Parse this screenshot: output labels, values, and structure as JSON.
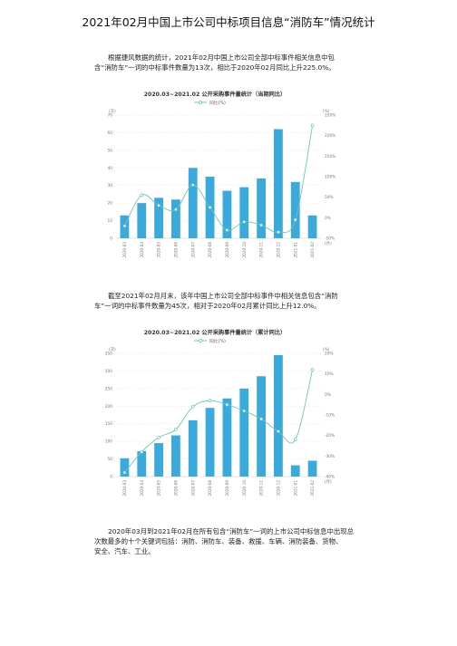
{
  "document": {
    "title": "2021年02月中国上市公司中标项目信息“消防车”情况统计",
    "para1": "根据捷风数据的统计，2021年02月中国上市公司全部中标事件相关信息中包\n含“消防车”一词的中标事件数量为13次，相比于2020年02月同比上升225.0%。",
    "para2": "截至2021年02月月末，该年中国上市公司全部中标事件中相关信息包含“消防\n车”一词的中标事件数量为45次，相对于2020年02月累计同比上升12.0%。",
    "para3": "2020年03月到2021年02月在所有包含“消防车”一词的上市公司中标信息中出现总\n次数最多的十个关键词包括：消防、消防车、装备、救援、车辆、消防装备、货物、\n安全、汽车、工业。"
  },
  "chart_data": [
    {
      "type": "bar",
      "title": "2020.03~2021.02 公开采购事件量统计（当期同比）",
      "legend": "同比(%)",
      "ylabel_left": "(次)",
      "ylabel_right": "(%)",
      "xlabel_right": "(月)",
      "bar_color": "#3aa9dc",
      "line_color": "#6cc7b6",
      "categories": [
        "2020-03",
        "2020-04",
        "2020-05",
        "2020-06",
        "2020-07",
        "2020-08",
        "2020-09",
        "2020-10",
        "2020-11",
        "2020-12",
        "2021-01",
        "2021-02"
      ],
      "yticks_left": [
        "0",
        "10",
        "20",
        "30",
        "40",
        "50",
        "60",
        "70"
      ],
      "yticks_right": [
        "-50%",
        "0%",
        "50%",
        "100%",
        "150%",
        "200%",
        "250%"
      ],
      "ylim_left": [
        0,
        70
      ],
      "ylim_right": [
        -50,
        250
      ],
      "series": [
        {
          "name": "",
          "kind": "bar",
          "axis": "left",
          "values": [
            13,
            20,
            23,
            22,
            40,
            35,
            27,
            29,
            34,
            62,
            32,
            13
          ]
        },
        {
          "name": "同比(%)",
          "kind": "line",
          "axis": "right",
          "values": [
            -20,
            55,
            30,
            20,
            80,
            25,
            -30,
            -10,
            -18,
            -35,
            -5,
            225
          ]
        }
      ]
    },
    {
      "type": "bar",
      "title": "2020.03~2021.02 公开采购事件量统计（累计同比）",
      "legend": "同比(%)",
      "ylabel_left": "(次)",
      "ylabel_right": "(%)",
      "xlabel_right": "(月)",
      "bar_color": "#3aa9dc",
      "line_color": "#6cc7b6",
      "categories": [
        "2020-03",
        "2020-04",
        "2020-05",
        "2020-06",
        "2020-07",
        "2020-08",
        "2020-09",
        "2020-10",
        "2020-11",
        "2020-12",
        "2021-01",
        "2021-02"
      ],
      "yticks_left": [
        "0",
        "50",
        "100",
        "150",
        "200",
        "250",
        "300",
        "350"
      ],
      "yticks_right": [
        "-40%",
        "-30%",
        "-20%",
        "-10%",
        "0%",
        "10%",
        "20%"
      ],
      "ylim_left": [
        0,
        350
      ],
      "ylim_right": [
        -40,
        20
      ],
      "series": [
        {
          "name": "",
          "kind": "bar",
          "axis": "left",
          "values": [
            52,
            72,
            95,
            117,
            160,
            195,
            222,
            250,
            285,
            345,
            32,
            45
          ]
        },
        {
          "name": "同比(%)",
          "kind": "line",
          "axis": "right",
          "values": [
            -38,
            -28,
            -21,
            -17,
            -6,
            -3,
            -5,
            -8,
            -12,
            -18,
            -22,
            12
          ]
        }
      ]
    }
  ]
}
